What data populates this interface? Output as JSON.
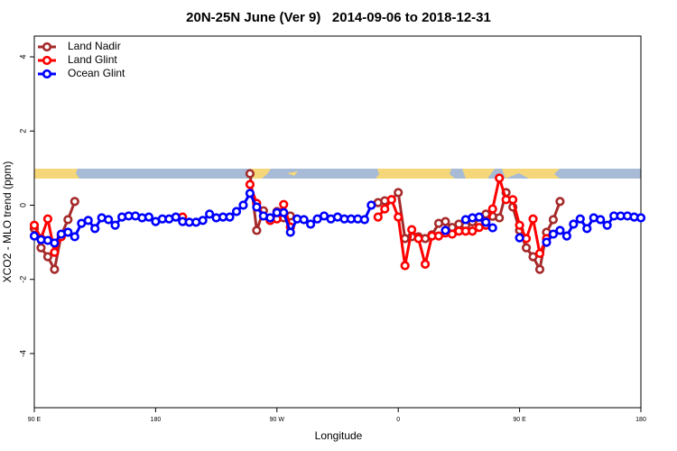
{
  "chart_data": {
    "type": "line",
    "title": "20N-25N June (Ver 9)   2014-09-06 to 2018-12-31",
    "x_label": "Longitude",
    "y_label": "XCO2 - MLO trend (ppm)",
    "x": [
      90,
      95,
      100,
      105,
      110,
      115,
      120,
      125,
      130,
      135,
      140,
      145,
      150,
      155,
      160,
      165,
      170,
      175,
      180,
      185,
      190,
      195,
      200,
      205,
      210,
      215,
      220,
      225,
      230,
      235,
      240,
      245,
      250,
      255,
      260,
      265,
      270,
      275,
      280,
      285,
      290,
      295,
      300,
      305,
      310,
      315,
      320,
      325,
      330,
      335,
      340,
      345,
      350,
      355,
      360,
      365,
      370,
      375,
      380,
      385,
      390,
      395,
      400,
      405,
      410,
      415,
      420,
      425,
      430,
      435,
      440,
      445,
      450,
      455,
      460,
      465,
      470,
      475,
      480,
      485,
      490,
      495,
      500,
      505,
      510,
      515,
      520,
      525,
      530,
      535,
      540
    ],
    "xlim": [
      90,
      540
    ],
    "xticks": [
      {
        "value": 90,
        "label": "90 E"
      },
      {
        "value": 180,
        "label": "180"
      },
      {
        "value": 270,
        "label": "90 W"
      },
      {
        "value": 360,
        "label": "0"
      },
      {
        "value": 450,
        "label": "90 E"
      },
      {
        "value": 540,
        "label": "180"
      }
    ],
    "ylim": [
      -5.46,
      4.56
    ],
    "yticks": [
      -4,
      -2,
      0,
      2,
      4
    ],
    "legend": "top-left",
    "series": [
      {
        "name": "Land Nadir",
        "color": "#a52a2a",
        "values": [
          -0.63,
          -1.15,
          -1.39,
          -1.73,
          -0.8,
          -0.39,
          0.1,
          null,
          null,
          null,
          null,
          null,
          null,
          null,
          null,
          null,
          null,
          null,
          null,
          null,
          null,
          null,
          null,
          null,
          null,
          null,
          null,
          null,
          null,
          null,
          null,
          null,
          0.85,
          -0.68,
          -0.15,
          -0.41,
          -0.17,
          -0.34,
          -0.29,
          null,
          null,
          null,
          null,
          null,
          null,
          null,
          null,
          null,
          null,
          null,
          null,
          0.07,
          0.12,
          0.15,
          0.34,
          -0.9,
          -0.85,
          -0.85,
          -0.9,
          -0.8,
          -0.49,
          -0.44,
          -0.6,
          -0.51,
          -0.55,
          -0.45,
          -0.5,
          -0.24,
          -0.3,
          -0.34,
          0.34,
          -0.05,
          -0.68,
          -1.15,
          -1.39,
          -1.73,
          -0.73,
          -0.39,
          0.1,
          null,
          null,
          null,
          null,
          null,
          null,
          null,
          null,
          null,
          null,
          null,
          null
        ]
      },
      {
        "name": "Land Glint",
        "color": "#ff0000",
        "values": [
          -0.54,
          -0.9,
          -0.37,
          -1.27,
          -0.85,
          null,
          null,
          null,
          null,
          null,
          null,
          null,
          null,
          null,
          null,
          null,
          null,
          null,
          null,
          null,
          null,
          null,
          -0.32,
          null,
          null,
          null,
          null,
          null,
          null,
          null,
          null,
          null,
          0.56,
          0.05,
          -0.29,
          -0.41,
          -0.37,
          0.02,
          -0.59,
          null,
          null,
          null,
          null,
          null,
          null,
          null,
          null,
          null,
          null,
          null,
          null,
          -0.32,
          -0.1,
          0.15,
          -0.32,
          -1.63,
          -0.66,
          -0.9,
          -1.59,
          -0.83,
          -0.83,
          -0.75,
          -0.78,
          -0.7,
          -0.7,
          -0.7,
          -0.6,
          -0.54,
          -0.1,
          0.73,
          0.15,
          0.15,
          -0.54,
          -0.9,
          -0.37,
          -1.3,
          -0.9,
          null,
          null,
          null,
          null,
          null,
          null,
          null,
          null,
          null,
          null,
          null,
          null,
          null,
          null
        ]
      },
      {
        "name": "Ocean Glint",
        "color": "#0000ff",
        "values": [
          -0.83,
          -0.93,
          -0.95,
          -1.02,
          -0.78,
          -0.73,
          -0.85,
          -0.49,
          -0.41,
          -0.63,
          -0.34,
          -0.39,
          -0.54,
          -0.32,
          -0.29,
          -0.29,
          -0.34,
          -0.32,
          -0.44,
          -0.37,
          -0.37,
          -0.32,
          -0.44,
          -0.46,
          -0.46,
          -0.41,
          -0.24,
          -0.34,
          -0.32,
          -0.32,
          -0.17,
          0.0,
          0.32,
          -0.05,
          -0.29,
          -0.34,
          -0.2,
          -0.2,
          -0.73,
          -0.37,
          -0.39,
          -0.51,
          -0.37,
          -0.29,
          -0.37,
          -0.32,
          -0.37,
          -0.37,
          -0.37,
          -0.39,
          0.0,
          null,
          null,
          null,
          null,
          null,
          null,
          null,
          null,
          null,
          null,
          -0.68,
          null,
          null,
          -0.39,
          -0.34,
          -0.32,
          -0.46,
          -0.61,
          null,
          null,
          null,
          -0.88,
          null,
          null,
          null,
          -1.0,
          -0.78,
          -0.68,
          -0.83,
          -0.51,
          -0.37,
          -0.63,
          -0.34,
          -0.39,
          -0.54,
          -0.29,
          -0.29,
          -0.29,
          -0.32,
          -0.34
        ]
      }
    ]
  }
}
